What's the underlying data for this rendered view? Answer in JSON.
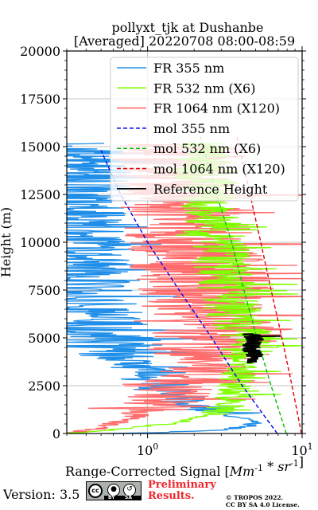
{
  "chart_data": {
    "type": "line",
    "title_line1": "pollyxt_tjk at Dushanbe",
    "title_line2": "[Averaged] 20220708 08:00-08:59",
    "xlabel": "Range-Corrected Signal [Mm^-1 * sr^-1]",
    "ylabel": "Height (m)",
    "xscale": "log",
    "xlim": [
      0.3,
      10
    ],
    "ylim": [
      0,
      20000
    ],
    "xticks": [
      1,
      10
    ],
    "xtick_labels": [
      "10^0",
      "10^1"
    ],
    "yticks": [
      0,
      2500,
      5000,
      7500,
      10000,
      12500,
      15000,
      17500,
      20000
    ],
    "ytick_labels": [
      "0",
      "2500",
      "5000",
      "7500",
      "10000",
      "12500",
      "15000",
      "17500",
      "20000"
    ],
    "grid": true,
    "legend_position": "top-right",
    "series": [
      {
        "name": "FR 355 nm",
        "color": "#1f8ee8",
        "style": "solid",
        "noise": 0.35,
        "points": [
          [
            0.5,
            0
          ],
          [
            1.2,
            50
          ],
          [
            3.2,
            200
          ],
          [
            4.5,
            400
          ],
          [
            4.8,
            600
          ],
          [
            4.2,
            800
          ],
          [
            3.0,
            1100
          ],
          [
            2.0,
            1500
          ],
          [
            1.5,
            2000
          ],
          [
            1.2,
            2500
          ],
          [
            1.0,
            3000
          ],
          [
            0.85,
            3500
          ],
          [
            0.7,
            4000
          ],
          [
            0.6,
            4500
          ],
          [
            0.5,
            5000
          ],
          [
            0.45,
            6000
          ],
          [
            0.42,
            7000
          ],
          [
            0.4,
            8000
          ],
          [
            0.38,
            10000
          ],
          [
            0.37,
            12000
          ],
          [
            0.36,
            15200
          ]
        ]
      },
      {
        "name": "FR 532 nm (X6)",
        "color": "#7fff00",
        "style": "solid",
        "noise": 0.2,
        "points": [
          [
            0.3,
            0
          ],
          [
            0.6,
            200
          ],
          [
            1.3,
            500
          ],
          [
            2.6,
            1000
          ],
          [
            3.4,
            1500
          ],
          [
            3.5,
            2000
          ],
          [
            3.6,
            2500
          ],
          [
            3.8,
            3000
          ],
          [
            4.0,
            3500
          ],
          [
            4.3,
            4000
          ],
          [
            4.5,
            4500
          ],
          [
            4.4,
            5000
          ],
          [
            4.0,
            5500
          ],
          [
            3.6,
            6000
          ],
          [
            3.4,
            7000
          ],
          [
            3.2,
            8000
          ],
          [
            3.0,
            9000
          ],
          [
            2.8,
            10000
          ],
          [
            2.6,
            11000
          ],
          [
            2.5,
            12000
          ],
          [
            2.4,
            13000
          ],
          [
            2.3,
            14000
          ],
          [
            2.2,
            15200
          ]
        ]
      },
      {
        "name": "FR 1064 nm (X120)",
        "color": "#ff6b6b",
        "style": "solid",
        "noise": 0.45,
        "points": [
          [
            0.3,
            0
          ],
          [
            0.5,
            300
          ],
          [
            0.8,
            800
          ],
          [
            1.2,
            1500
          ],
          [
            1.5,
            2200
          ],
          [
            1.8,
            2800
          ],
          [
            2.2,
            3300
          ],
          [
            2.6,
            3800
          ],
          [
            2.8,
            4300
          ],
          [
            3.0,
            5000
          ],
          [
            2.7,
            6000
          ],
          [
            2.5,
            7000
          ],
          [
            2.3,
            8000
          ],
          [
            2.1,
            9000
          ],
          [
            2.0,
            10000
          ],
          [
            1.9,
            11000
          ],
          [
            1.8,
            12000
          ],
          [
            1.7,
            13000
          ],
          [
            1.6,
            14000
          ],
          [
            1.5,
            15200
          ]
        ]
      },
      {
        "name": "mol 355 nm",
        "color": "#0000ee",
        "style": "dashed",
        "points": [
          [
            6.9,
            0
          ],
          [
            4.1,
            2500
          ],
          [
            2.6,
            5000
          ],
          [
            1.6,
            7500
          ],
          [
            1.0,
            10000
          ],
          [
            0.67,
            12500
          ],
          [
            0.5,
            14800
          ]
        ]
      },
      {
        "name": "mol 532 nm (X6)",
        "color": "#00bb00",
        "style": "dashed",
        "points": [
          [
            7.9,
            0
          ],
          [
            6.3,
            2500
          ],
          [
            5.1,
            5000
          ],
          [
            4.2,
            7500
          ],
          [
            3.5,
            10000
          ],
          [
            2.8,
            12500
          ],
          [
            2.2,
            15500
          ]
        ]
      },
      {
        "name": "mol 1064 nm (X120)",
        "color": "#dd0000",
        "style": "dashed",
        "points": [
          [
            9.9,
            0
          ],
          [
            8.6,
            2500
          ],
          [
            7.4,
            5000
          ],
          [
            6.3,
            7500
          ],
          [
            5.4,
            10000
          ],
          [
            4.6,
            12500
          ],
          [
            3.8,
            15500
          ]
        ]
      },
      {
        "name": "Reference Height",
        "color": "#000000",
        "style": "solid",
        "noise": 0.06,
        "points": [
          [
            4.7,
            3700
          ],
          [
            4.9,
            4100
          ],
          [
            4.6,
            4500
          ],
          [
            4.9,
            4900
          ],
          [
            4.7,
            5200
          ]
        ]
      }
    ]
  },
  "footer": {
    "version": "Version: 3.5",
    "cc_label": "cc",
    "by_label": "BY",
    "sa_label": "SA",
    "preliminary_line1": "Preliminary",
    "preliminary_line2": "Results.",
    "copyright_line1": "© TROPOS 2022.",
    "copyright_line2": "CC BY SA 4.0 License."
  }
}
